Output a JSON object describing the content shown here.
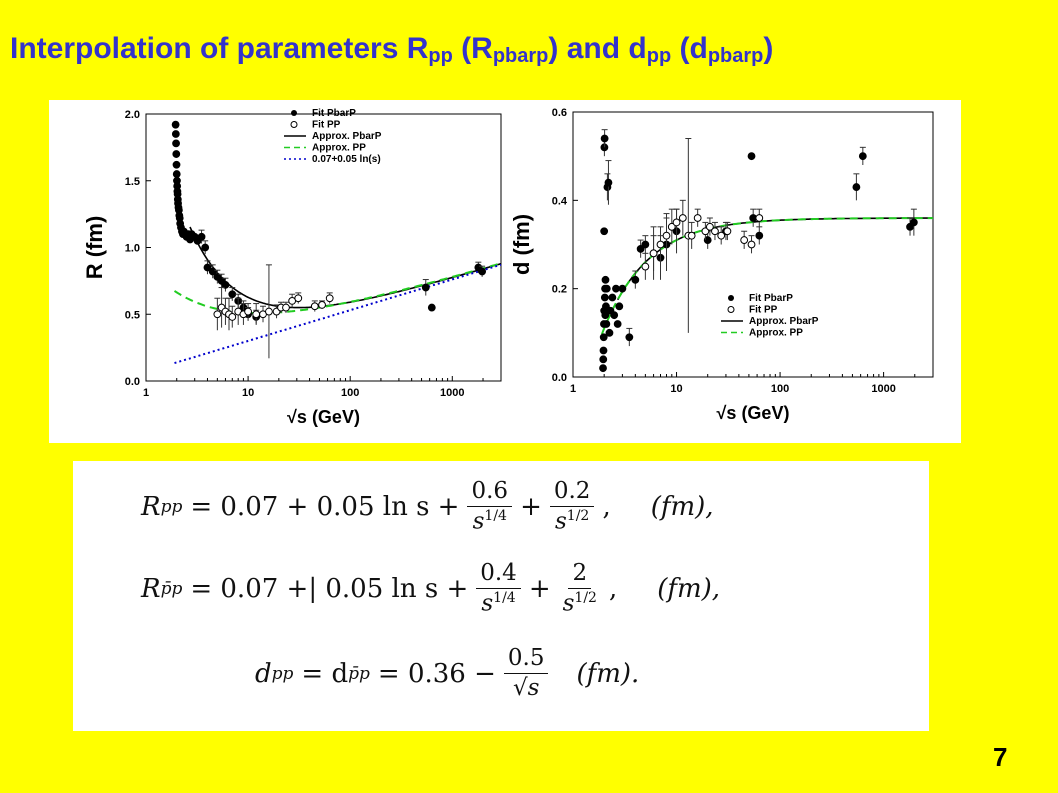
{
  "title": {
    "text": "Interpolation  of  parameters  R",
    "sub1": "pp",
    "mid1": " (R",
    "sub2": "pbarp",
    "mid2": ") and  d",
    "sub3": "pp",
    "mid3": " (d",
    "sub4": "pbarp",
    "end": ")"
  },
  "page_number": "7",
  "colors": {
    "background": "#ffff00",
    "title": "#3333cc",
    "pp_fit": "#22cc22",
    "log_line": "#0000cc"
  },
  "formulas": {
    "eq1": {
      "lhs": "R",
      "lhs_sub": "pp",
      "rhs_start": "= 0.07 + 0.05 ln s +",
      "f1_num": "0.6",
      "f1_den": "s",
      "f1_den_exp": "1/4",
      "plus": "+",
      "f2_num": "0.2",
      "f2_den": "s",
      "f2_den_exp": "1/2",
      "unit": "(fm),",
      "comma": ","
    },
    "eq2": {
      "lhs": "R",
      "lhs_sub": "p̄p",
      "rhs_start": "= 0.07 +| 0.05 ln s +",
      "f1_num": "0.4",
      "f1_den": "s",
      "f1_den_exp": "1/4",
      "plus": "+",
      "f2_num": "2",
      "f2_den": "s",
      "f2_den_exp": "1/2",
      "unit": "(fm),",
      "comma": ","
    },
    "eq3": {
      "lhs": "d",
      "lhs_sub": "pp",
      "eq": "= d",
      "eq_sub": "p̄p",
      "rhs_start": "= 0.36 −",
      "f_num": "0.5",
      "f_den": "√s",
      "unit": "(fm)."
    }
  },
  "chart_data": [
    {
      "type": "scatter",
      "x_scale": "log",
      "xlabel": "√s  (GeV)",
      "ylabel": "R (fm)",
      "xlim": [
        1,
        3000
      ],
      "ylim": [
        0.0,
        2.0
      ],
      "x_ticks": [
        1,
        10,
        100,
        1000
      ],
      "x_tick_labels": [
        "1",
        "10",
        "100",
        "1000"
      ],
      "y_ticks": [
        0.0,
        0.5,
        1.0,
        1.5,
        2.0
      ],
      "y_tick_labels": [
        "0.0",
        "0.5",
        "1.0",
        "1.5",
        "2.0"
      ],
      "legend_position": "top-right",
      "legend": [
        "Fit PbarP",
        "Fit PP",
        "Approx. PbarP",
        "Approx. PP",
        "0.07+0.05 ln(s)"
      ],
      "series": [
        {
          "name": "Fit PbarP",
          "kind": "filled-points",
          "x": [
            1.95,
            1.96,
            1.97,
            1.98,
            1.99,
            2.0,
            2.01,
            2.02,
            2.03,
            2.04,
            2.05,
            2.06,
            2.08,
            2.1,
            2.12,
            2.14,
            2.16,
            2.2,
            2.25,
            2.3,
            2.35,
            2.4,
            2.5,
            2.6,
            2.7,
            2.8,
            3.0,
            3.2,
            3.5,
            3.8,
            4.0,
            4.5,
            5.0,
            5.5,
            6.0,
            7.0,
            8.0,
            9.0,
            10.0,
            12.0,
            550.0,
            630.0,
            1800.0,
            1960.0
          ],
          "y": [
            1.92,
            1.85,
            1.78,
            1.7,
            1.62,
            1.55,
            1.5,
            1.46,
            1.42,
            1.4,
            1.36,
            1.33,
            1.3,
            1.28,
            1.24,
            1.22,
            1.18,
            1.15,
            1.12,
            1.1,
            1.12,
            1.1,
            1.08,
            1.1,
            1.06,
            1.1,
            1.08,
            1.05,
            1.08,
            1.0,
            0.85,
            0.82,
            0.78,
            0.75,
            0.72,
            0.65,
            0.6,
            0.55,
            0.5,
            0.48,
            0.7,
            0.55,
            0.85,
            0.82
          ],
          "err": [
            0,
            0,
            0,
            0,
            0,
            0,
            0,
            0,
            0,
            0,
            0,
            0,
            0,
            0,
            0,
            0,
            0,
            0,
            0,
            0,
            0,
            0,
            0,
            0,
            0,
            0,
            0,
            0,
            0.05,
            0.05,
            0.05,
            0.05,
            0.05,
            0.05,
            0.05,
            0.05,
            0.05,
            0.05,
            0.05,
            0.05,
            0.06,
            0,
            0.04,
            0.04
          ]
        },
        {
          "name": "Fit PP",
          "kind": "open-points",
          "x": [
            5.0,
            5.5,
            6.0,
            6.5,
            7.0,
            8.0,
            9.0,
            10.0,
            12.0,
            14.0,
            16.0,
            19.0,
            21.0,
            23.5,
            27.0,
            31.0,
            45.0,
            53.0,
            63.0
          ],
          "y": [
            0.5,
            0.55,
            0.52,
            0.5,
            0.48,
            0.52,
            0.5,
            0.52,
            0.5,
            0.5,
            0.52,
            0.52,
            0.55,
            0.55,
            0.6,
            0.62,
            0.56,
            0.57,
            0.62
          ],
          "err": [
            0.12,
            0.15,
            0.1,
            0.12,
            0.08,
            0.1,
            0.08,
            0.06,
            0.08,
            0.06,
            0.35,
            0.05,
            0.04,
            0.04,
            0.05,
            0.04,
            0.04,
            0.03,
            0.04
          ]
        },
        {
          "name": "Approx. PbarP",
          "kind": "line",
          "formula": "0.07 + 0.05 ln s + 0.4/s^(1/4) + 2/s^(1/2)"
        },
        {
          "name": "Approx. PP",
          "kind": "dashed-line",
          "formula": "0.07 + 0.05 ln s + 0.6/s^(1/4) + 0.2/s^(1/2)"
        },
        {
          "name": "0.07+0.05 ln(s)",
          "kind": "dotted-line",
          "formula": "0.07 + 0.05 ln s"
        }
      ]
    },
    {
      "type": "scatter",
      "x_scale": "log",
      "xlabel": "√s  (GeV)",
      "ylabel": "d (fm)",
      "xlim": [
        1,
        3000
      ],
      "ylim": [
        0.0,
        0.6
      ],
      "x_ticks": [
        1,
        10,
        100,
        1000
      ],
      "x_tick_labels": [
        "1",
        "10",
        "100",
        "1000"
      ],
      "y_ticks": [
        0.0,
        0.2,
        0.4,
        0.6
      ],
      "y_tick_labels": [
        "0.0",
        "0.2",
        "0.4",
        "0.6"
      ],
      "legend_position": "bottom-right",
      "legend": [
        "Fit PbarP",
        "Fit PP",
        "Approx. PbarP",
        "Approx. PP"
      ],
      "series": [
        {
          "name": "Fit PbarP",
          "kind": "filled-points",
          "x": [
            1.95,
            1.96,
            1.97,
            1.98,
            1.99,
            2.0,
            2.0,
            2.01,
            2.02,
            2.03,
            2.04,
            2.05,
            2.06,
            2.08,
            2.1,
            2.12,
            2.15,
            2.2,
            2.25,
            2.3,
            2.4,
            2.5,
            2.6,
            2.7,
            2.8,
            3.0,
            3.5,
            4.0,
            4.5,
            5.0,
            6.0,
            7.0,
            8.0,
            10.0,
            20.0,
            30.0,
            53.0,
            55.0,
            63.0,
            546.0,
            630.0,
            1800.0,
            1960.0
          ],
          "y": [
            0.02,
            0.04,
            0.06,
            0.09,
            0.12,
            0.15,
            0.33,
            0.52,
            0.54,
            0.18,
            0.2,
            0.14,
            0.22,
            0.16,
            0.12,
            0.2,
            0.43,
            0.44,
            0.1,
            0.15,
            0.18,
            0.14,
            0.2,
            0.12,
            0.16,
            0.2,
            0.09,
            0.22,
            0.29,
            0.3,
            0.28,
            0.27,
            0.3,
            0.33,
            0.31,
            0.33,
            0.5,
            0.36,
            0.32,
            0.43,
            0.5,
            0.34,
            0.35
          ],
          "err": [
            0,
            0,
            0,
            0,
            0,
            0,
            0,
            0.02,
            0.02,
            0,
            0,
            0,
            0,
            0,
            0,
            0,
            0.03,
            0.05,
            0,
            0,
            0,
            0,
            0,
            0,
            0,
            0,
            0.02,
            0.02,
            0.02,
            0.02,
            0.04,
            0.05,
            0.06,
            0.05,
            0.02,
            0.02,
            0,
            0.02,
            0.02,
            0.03,
            0.02,
            0.02,
            0.03
          ]
        },
        {
          "name": "Fit PP",
          "kind": "open-points",
          "x": [
            5.0,
            6.0,
            7.0,
            8.0,
            9.0,
            10.0,
            11.5,
            13.0,
            14.0,
            16.0,
            19.0,
            21.0,
            23.5,
            27.0,
            31.0,
            45.0,
            53.0,
            63.0
          ],
          "y": [
            0.25,
            0.28,
            0.3,
            0.32,
            0.34,
            0.35,
            0.36,
            0.32,
            0.32,
            0.36,
            0.33,
            0.34,
            0.33,
            0.32,
            0.33,
            0.31,
            0.3,
            0.36
          ],
          "err": [
            0.03,
            0.06,
            0.04,
            0.05,
            0.04,
            0.03,
            0.04,
            0.22,
            0.03,
            0.02,
            0.02,
            0.02,
            0.02,
            0.02,
            0.02,
            0.02,
            0.02,
            0.02
          ]
        },
        {
          "name": "Approx. PbarP",
          "kind": "line",
          "formula": "0.36 - 0.5/sqrt(s)"
        },
        {
          "name": "Approx. PP",
          "kind": "dashed-line",
          "formula": "0.36 - 0.5/sqrt(s)"
        }
      ]
    }
  ]
}
